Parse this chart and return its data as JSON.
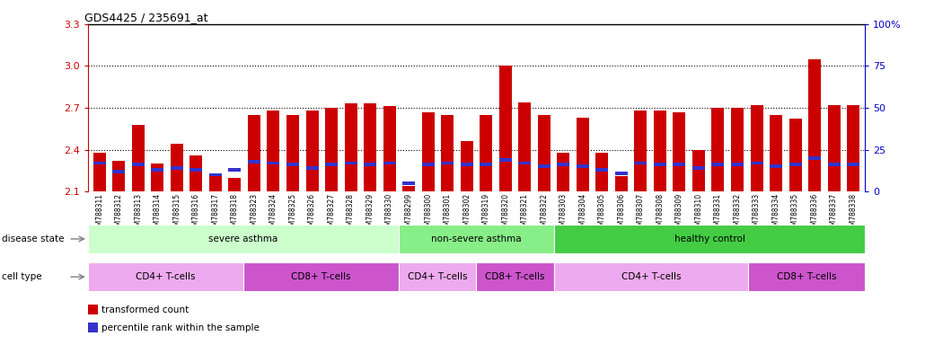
{
  "title": "GDS4425 / 235691_at",
  "samples": [
    "GSM788311",
    "GSM788312",
    "GSM788313",
    "GSM788314",
    "GSM788315",
    "GSM788316",
    "GSM788317",
    "GSM788318",
    "GSM788323",
    "GSM788324",
    "GSM788325",
    "GSM788326",
    "GSM788327",
    "GSM788328",
    "GSM788329",
    "GSM788330",
    "GSM788299",
    "GSM788300",
    "GSM788301",
    "GSM788302",
    "GSM788319",
    "GSM788320",
    "GSM788321",
    "GSM788322",
    "GSM788303",
    "GSM788304",
    "GSM788305",
    "GSM788306",
    "GSM788307",
    "GSM788308",
    "GSM788309",
    "GSM788310",
    "GSM788331",
    "GSM788332",
    "GSM788333",
    "GSM788334",
    "GSM788335",
    "GSM788336",
    "GSM788337",
    "GSM788338"
  ],
  "transformed_count": [
    2.38,
    2.32,
    2.58,
    2.3,
    2.44,
    2.36,
    2.22,
    2.2,
    2.65,
    2.68,
    2.65,
    2.68,
    2.7,
    2.73,
    2.73,
    2.71,
    2.14,
    2.67,
    2.65,
    2.46,
    2.65,
    3.0,
    2.74,
    2.65,
    2.38,
    2.63,
    2.38,
    2.21,
    2.68,
    2.68,
    2.67,
    2.4,
    2.7,
    2.7,
    2.72,
    2.65,
    2.62,
    3.05,
    2.72,
    2.72
  ],
  "percentile_rank": [
    17,
    12,
    16,
    13,
    14,
    13,
    10,
    13,
    18,
    17,
    16,
    14,
    16,
    17,
    16,
    17,
    5,
    16,
    17,
    16,
    16,
    19,
    17,
    15,
    16,
    15,
    13,
    11,
    17,
    16,
    16,
    14,
    16,
    16,
    17,
    15,
    16,
    20,
    16,
    16
  ],
  "ylim_left": [
    2.1,
    3.3
  ],
  "ylim_right": [
    0,
    100
  ],
  "yticks_left": [
    2.1,
    2.4,
    2.7,
    3.0,
    3.3
  ],
  "yticks_right": [
    0,
    25,
    50,
    75,
    100
  ],
  "bar_color": "#cc0000",
  "blue_color": "#3333cc",
  "bar_width": 0.65,
  "disease_states": [
    {
      "label": "severe asthma",
      "start": 0,
      "end": 16,
      "color": "#ccffcc"
    },
    {
      "label": "non-severe asthma",
      "start": 16,
      "end": 24,
      "color": "#88ee88"
    },
    {
      "label": "healthy control",
      "start": 24,
      "end": 40,
      "color": "#44cc44"
    }
  ],
  "cell_types": [
    {
      "label": "CD4+ T-cells",
      "start": 0,
      "end": 8,
      "color": "#eeaaee"
    },
    {
      "label": "CD8+ T-cells",
      "start": 8,
      "end": 16,
      "color": "#cc55cc"
    },
    {
      "label": "CD4+ T-cells",
      "start": 16,
      "end": 20,
      "color": "#eeaaee"
    },
    {
      "label": "CD8+ T-cells",
      "start": 20,
      "end": 24,
      "color": "#cc55cc"
    },
    {
      "label": "CD4+ T-cells",
      "start": 24,
      "end": 34,
      "color": "#eeaaee"
    },
    {
      "label": "CD8+ T-cells",
      "start": 34,
      "end": 40,
      "color": "#cc55cc"
    }
  ],
  "legend_items": [
    {
      "label": "transformed count",
      "color": "#cc0000"
    },
    {
      "label": "percentile rank within the sample",
      "color": "#3333cc"
    }
  ],
  "background_color": "#ffffff",
  "tick_label_color_left": "#cc0000",
  "tick_label_color_right": "#0000cc",
  "base_value": 2.1
}
